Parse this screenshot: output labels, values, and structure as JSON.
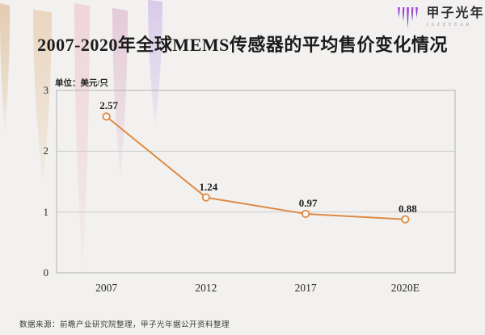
{
  "title": "2007-2020年全球MEMS传感器的平均售价变化情况",
  "unit_label": "单位：美元/只",
  "source": "数据来源：前瞻产业研究院整理，甲子光年据公开资料整理",
  "logo": {
    "brand": "甲子光年",
    "subtitle": "JAZZYEAR"
  },
  "colors": {
    "background": "#f2f1ef",
    "accent": "#dd8b45",
    "marker_fill": "#faf8f5",
    "grid": "#cecdcb",
    "plot_border": "#b3b2b0",
    "title": "#1b1b1b",
    "logo_purple": "#8a3fd4"
  },
  "chart_data": {
    "type": "line",
    "title": "2007-2020年全球MEMS传感器的平均售价变化情况",
    "categories": [
      "2007",
      "2012",
      "2017",
      "2020E"
    ],
    "values": [
      2.57,
      1.24,
      0.97,
      0.88
    ],
    "ylabel": "美元/只",
    "xlabel": "",
    "ylim": [
      0,
      3
    ],
    "yticks": [
      0,
      1,
      2,
      3
    ],
    "grid": true,
    "legend": false,
    "marker": "open-circle",
    "line_color": "#dd8b45"
  }
}
